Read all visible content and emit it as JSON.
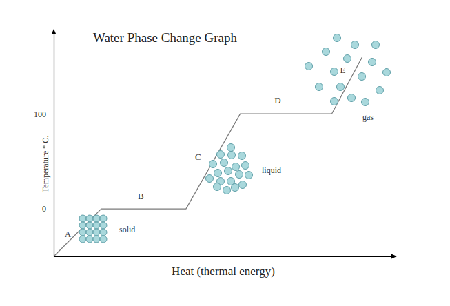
{
  "chart_data": {
    "type": "line",
    "title": "Water Phase Change Graph",
    "x_label": "Heat (thermal energy)",
    "y_label": "Temperature ° C.",
    "x": [
      0,
      14,
      39,
      55,
      82,
      91
    ],
    "values": [
      -50,
      0,
      0,
      100,
      100,
      160
    ],
    "xlim": [
      0,
      100
    ],
    "ylim": [
      -50,
      185
    ],
    "yticks": [
      0,
      100
    ],
    "tick_labels": "y",
    "grid": false,
    "color": "#7a7a7a",
    "segment_labels": [
      "A",
      "B",
      "C",
      "D",
      "E"
    ],
    "phase_labels": [
      "solid",
      "liquid",
      "gas"
    ]
  }
}
